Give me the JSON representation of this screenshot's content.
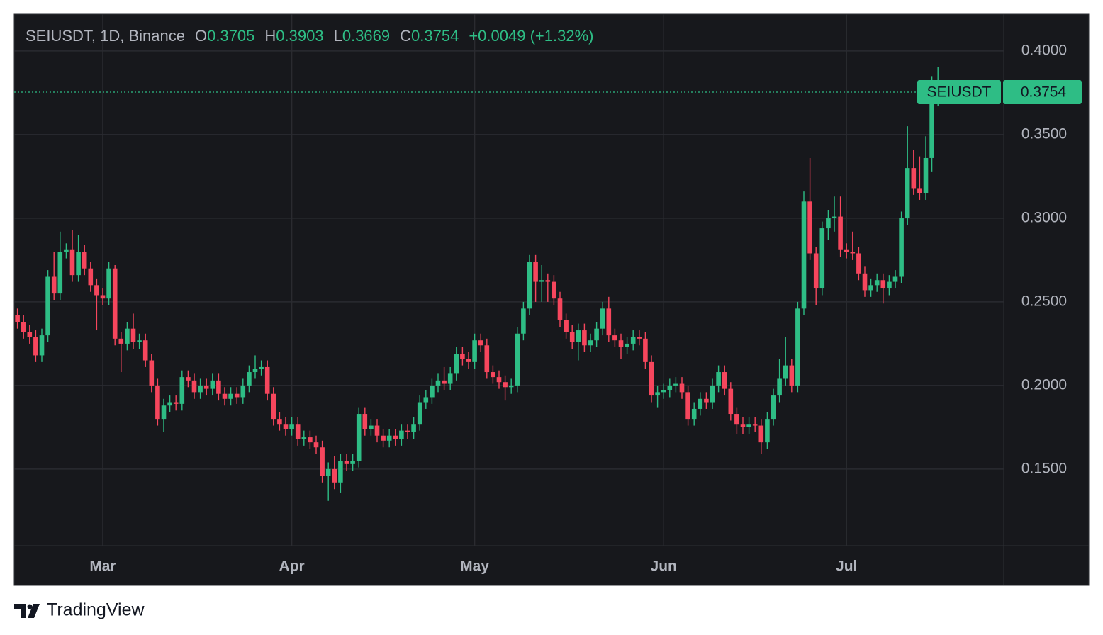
{
  "chart_data": {
    "type": "candlestick",
    "title": "SEIUSDT, 1D, Binance",
    "symbol": "SEIUSDT",
    "open_label": "O",
    "high_label": "H",
    "low_label": "L",
    "close_label": "C",
    "change": "+0.0049 (+1.32%)",
    "up_color": "#2ebd85",
    "down_color": "#f6465d",
    "grid": true,
    "ylim": [
      0.1042,
      0.422
    ],
    "yticks": [
      {
        "value": 0.15,
        "label": "0.1500"
      },
      {
        "value": 0.2,
        "label": "0.2000"
      },
      {
        "value": 0.25,
        "label": "0.2500"
      },
      {
        "value": 0.3,
        "label": "0.3000"
      },
      {
        "value": 0.35,
        "label": "0.3500"
      },
      {
        "value": 0.4,
        "label": "0.4000"
      }
    ],
    "categories": [
      null,
      null,
      null,
      null,
      null,
      null,
      null,
      null,
      null,
      null,
      null,
      null,
      null,
      null,
      "Mar",
      null,
      null,
      null,
      null,
      null,
      null,
      null,
      null,
      null,
      null,
      null,
      null,
      null,
      null,
      null,
      null,
      null,
      null,
      null,
      null,
      null,
      null,
      null,
      null,
      null,
      null,
      null,
      null,
      null,
      null,
      "Apr",
      null,
      null,
      null,
      null,
      null,
      null,
      null,
      null,
      null,
      null,
      null,
      null,
      null,
      null,
      null,
      null,
      null,
      null,
      null,
      null,
      null,
      null,
      null,
      null,
      null,
      null,
      null,
      null,
      null,
      "May",
      null,
      null,
      null,
      null,
      null,
      null,
      null,
      null,
      null,
      null,
      null,
      null,
      null,
      null,
      null,
      null,
      null,
      null,
      null,
      null,
      null,
      null,
      null,
      null,
      null,
      null,
      null,
      null,
      null,
      null,
      "Jun",
      null,
      null,
      null,
      null,
      null,
      null,
      null,
      null,
      null,
      null,
      null,
      null,
      null,
      null,
      null,
      null,
      null,
      null,
      null,
      null,
      null,
      null,
      null,
      null,
      null,
      null,
      null,
      null,
      null,
      "Jul",
      null,
      null,
      null,
      null,
      null,
      null,
      null,
      null,
      null,
      null,
      null,
      null,
      null,
      null,
      null
    ],
    "open": [
      0.242,
      0.238,
      0.232,
      0.229,
      0.218,
      0.23,
      0.265,
      0.255,
      0.28,
      0.281,
      0.266,
      0.28,
      0.27,
      0.26,
      0.254,
      0.252,
      0.27,
      0.228,
      0.225,
      0.234,
      0.226,
      0.227,
      0.215,
      0.2,
      0.18,
      0.188,
      0.19,
      0.189,
      0.205,
      0.203,
      0.196,
      0.2,
      0.198,
      0.203,
      0.195,
      0.192,
      0.195,
      0.193,
      0.2,
      0.208,
      0.21,
      0.211,
      0.195,
      0.18,
      0.177,
      0.174,
      0.177,
      0.168,
      0.169,
      0.166,
      0.163,
      0.146,
      0.15,
      0.142,
      0.155,
      0.153,
      0.155,
      0.183,
      0.174,
      0.176,
      0.17,
      0.167,
      0.17,
      0.168,
      0.173,
      0.172,
      0.177,
      0.19,
      0.193,
      0.2,
      0.203,
      0.201,
      0.207,
      0.219,
      0.216,
      0.214,
      0.227,
      0.224,
      0.208,
      0.205,
      0.202,
      0.199,
      0.2,
      0.231,
      0.246,
      0.274,
      0.262,
      0.263,
      0.262,
      0.252,
      0.239,
      0.232,
      0.226,
      0.233,
      0.224,
      0.227,
      0.234,
      0.246,
      0.23,
      0.227,
      0.223,
      0.225,
      0.229,
      0.228,
      0.214,
      0.194,
      0.196,
      0.197,
      0.2,
      0.201,
      0.196,
      0.18,
      0.186,
      0.192,
      0.19,
      0.2,
      0.208,
      0.198,
      0.183,
      0.177,
      0.175,
      0.177,
      0.176,
      0.166,
      0.18,
      0.194,
      0.204,
      0.212,
      0.2,
      0.246,
      0.31,
      0.279,
      0.258,
      0.294,
      0.3,
      0.301,
      0.281,
      0.28,
      0.279,
      0.267,
      0.257,
      0.26,
      0.263,
      0.258,
      0.262,
      0.265,
      0.3,
      0.33,
      0.318,
      0.315,
      0.336,
      0.3705
    ],
    "high": [
      0.246,
      0.242,
      0.236,
      0.233,
      0.234,
      0.269,
      0.28,
      0.292,
      0.285,
      0.293,
      0.29,
      0.284,
      0.274,
      0.264,
      0.258,
      0.274,
      0.272,
      0.232,
      0.238,
      0.243,
      0.231,
      0.231,
      0.219,
      0.204,
      0.192,
      0.194,
      0.194,
      0.209,
      0.209,
      0.207,
      0.204,
      0.204,
      0.207,
      0.207,
      0.199,
      0.199,
      0.199,
      0.204,
      0.212,
      0.218,
      0.215,
      0.215,
      0.199,
      0.184,
      0.181,
      0.181,
      0.181,
      0.173,
      0.173,
      0.17,
      0.167,
      0.154,
      0.158,
      0.159,
      0.159,
      0.159,
      0.187,
      0.187,
      0.18,
      0.18,
      0.174,
      0.174,
      0.174,
      0.177,
      0.177,
      0.181,
      0.194,
      0.197,
      0.204,
      0.207,
      0.211,
      0.211,
      0.223,
      0.223,
      0.22,
      0.231,
      0.231,
      0.228,
      0.212,
      0.209,
      0.206,
      0.204,
      0.235,
      0.25,
      0.278,
      0.278,
      0.272,
      0.267,
      0.266,
      0.256,
      0.243,
      0.236,
      0.237,
      0.237,
      0.231,
      0.238,
      0.25,
      0.253,
      0.234,
      0.231,
      0.229,
      0.233,
      0.233,
      0.232,
      0.218,
      0.2,
      0.201,
      0.204,
      0.205,
      0.205,
      0.2,
      0.19,
      0.196,
      0.196,
      0.204,
      0.212,
      0.212,
      0.202,
      0.187,
      0.181,
      0.181,
      0.181,
      0.18,
      0.184,
      0.198,
      0.216,
      0.229,
      0.216,
      0.25,
      0.316,
      0.336,
      0.283,
      0.298,
      0.305,
      0.313,
      0.313,
      0.285,
      0.292,
      0.283,
      0.271,
      0.264,
      0.267,
      0.267,
      0.266,
      0.269,
      0.304,
      0.355,
      0.341,
      0.337,
      0.349,
      0.385,
      0.3903
    ],
    "low": [
      0.234,
      0.228,
      0.225,
      0.214,
      0.214,
      0.226,
      0.251,
      0.251,
      0.276,
      0.262,
      0.262,
      0.266,
      0.256,
      0.233,
      0.248,
      0.248,
      0.224,
      0.208,
      0.221,
      0.222,
      0.222,
      0.211,
      0.196,
      0.176,
      0.172,
      0.184,
      0.185,
      0.185,
      0.199,
      0.192,
      0.192,
      0.194,
      0.194,
      0.191,
      0.188,
      0.188,
      0.189,
      0.189,
      0.196,
      0.204,
      0.206,
      0.191,
      0.176,
      0.173,
      0.17,
      0.17,
      0.164,
      0.164,
      0.162,
      0.159,
      0.142,
      0.131,
      0.138,
      0.136,
      0.149,
      0.149,
      0.151,
      0.17,
      0.17,
      0.166,
      0.163,
      0.163,
      0.164,
      0.164,
      0.168,
      0.168,
      0.173,
      0.186,
      0.189,
      0.196,
      0.197,
      0.197,
      0.203,
      0.212,
      0.21,
      0.21,
      0.22,
      0.204,
      0.201,
      0.198,
      0.191,
      0.195,
      0.196,
      0.227,
      0.242,
      0.25,
      0.25,
      0.25,
      0.248,
      0.235,
      0.228,
      0.222,
      0.215,
      0.22,
      0.22,
      0.223,
      0.23,
      0.226,
      0.223,
      0.216,
      0.219,
      0.221,
      0.224,
      0.21,
      0.19,
      0.187,
      0.192,
      0.193,
      0.196,
      0.192,
      0.176,
      0.176,
      0.182,
      0.186,
      0.186,
      0.196,
      0.194,
      0.179,
      0.171,
      0.171,
      0.171,
      0.172,
      0.159,
      0.162,
      0.176,
      0.19,
      0.2,
      0.196,
      0.196,
      0.242,
      0.275,
      0.248,
      0.254,
      0.287,
      0.292,
      0.277,
      0.276,
      0.275,
      0.263,
      0.253,
      0.253,
      0.256,
      0.249,
      0.254,
      0.258,
      0.261,
      0.296,
      0.314,
      0.311,
      0.311,
      0.328,
      0.3669
    ],
    "close": [
      0.238,
      0.232,
      0.229,
      0.218,
      0.23,
      0.265,
      0.255,
      0.28,
      0.281,
      0.266,
      0.28,
      0.27,
      0.26,
      0.254,
      0.252,
      0.27,
      0.228,
      0.225,
      0.234,
      0.226,
      0.227,
      0.215,
      0.2,
      0.18,
      0.188,
      0.19,
      0.189,
      0.205,
      0.203,
      0.196,
      0.2,
      0.198,
      0.203,
      0.195,
      0.192,
      0.195,
      0.193,
      0.2,
      0.208,
      0.21,
      0.211,
      0.195,
      0.18,
      0.177,
      0.174,
      0.177,
      0.168,
      0.169,
      0.166,
      0.163,
      0.146,
      0.15,
      0.142,
      0.155,
      0.153,
      0.155,
      0.183,
      0.174,
      0.176,
      0.17,
      0.167,
      0.17,
      0.168,
      0.173,
      0.172,
      0.177,
      0.19,
      0.193,
      0.2,
      0.203,
      0.201,
      0.207,
      0.219,
      0.216,
      0.214,
      0.227,
      0.224,
      0.208,
      0.205,
      0.202,
      0.199,
      0.2,
      0.231,
      0.246,
      0.274,
      0.262,
      0.263,
      0.262,
      0.252,
      0.239,
      0.232,
      0.226,
      0.233,
      0.224,
      0.227,
      0.234,
      0.246,
      0.23,
      0.227,
      0.223,
      0.225,
      0.229,
      0.228,
      0.214,
      0.194,
      0.196,
      0.197,
      0.2,
      0.201,
      0.196,
      0.18,
      0.186,
      0.192,
      0.19,
      0.2,
      0.208,
      0.198,
      0.183,
      0.177,
      0.175,
      0.177,
      0.176,
      0.166,
      0.18,
      0.194,
      0.204,
      0.212,
      0.2,
      0.246,
      0.31,
      0.279,
      0.258,
      0.294,
      0.3,
      0.301,
      0.281,
      0.28,
      0.279,
      0.267,
      0.257,
      0.26,
      0.263,
      0.258,
      0.262,
      0.265,
      0.3,
      0.33,
      0.318,
      0.315,
      0.336,
      0.3705,
      0.3754
    ]
  },
  "footer": {
    "brand": "TradingView"
  }
}
